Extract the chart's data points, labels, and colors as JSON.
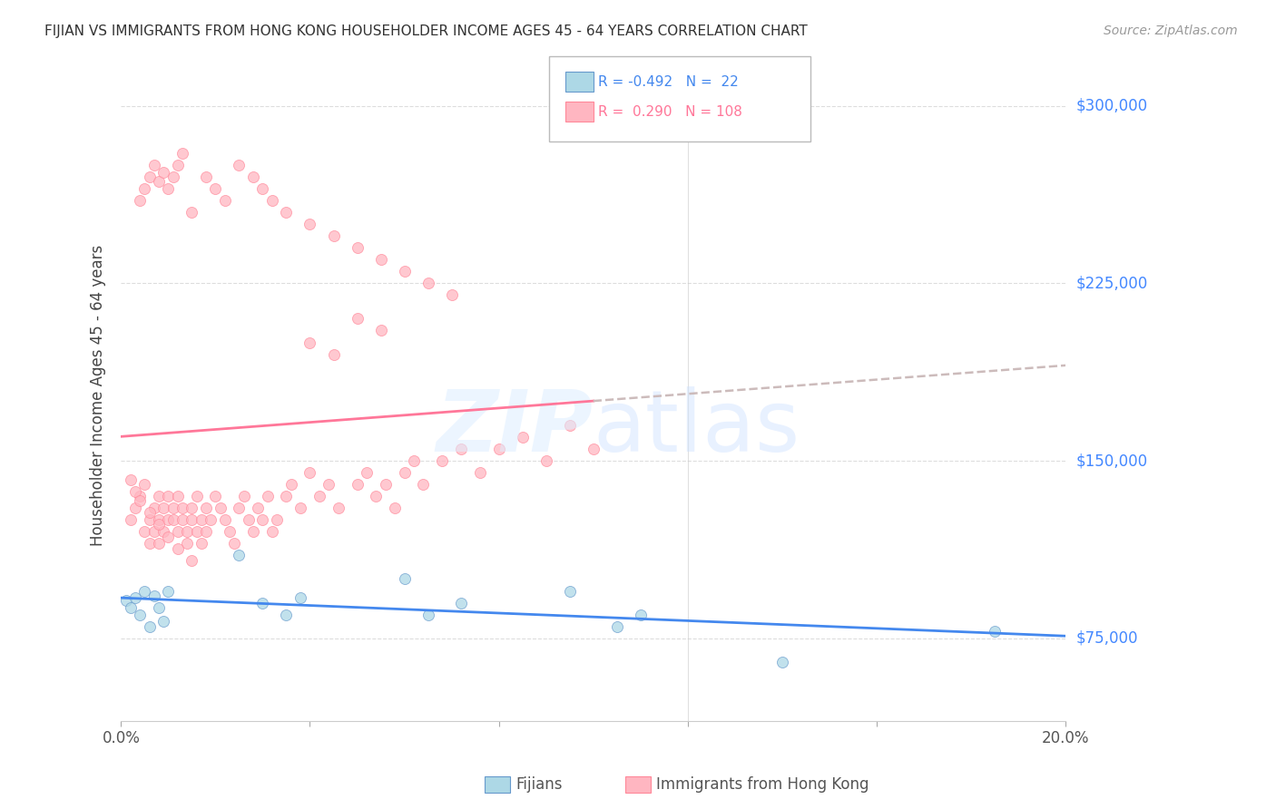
{
  "title": "FIJIAN VS IMMIGRANTS FROM HONG KONG HOUSEHOLDER INCOME AGES 45 - 64 YEARS CORRELATION CHART",
  "source": "Source: ZipAtlas.com",
  "ylabel": "Householder Income Ages 45 - 64 years",
  "xlim": [
    0.0,
    0.2
  ],
  "ylim": [
    40000,
    315000
  ],
  "ytick_labels": [
    "$75,000",
    "$150,000",
    "$225,000",
    "$300,000"
  ],
  "ytick_values": [
    75000,
    150000,
    225000,
    300000
  ],
  "fijian_color": "#ADD8E6",
  "hk_color": "#FFB6C1",
  "fijian_edge_color": "#6699CC",
  "hk_edge_color": "#FF8899",
  "fijian_line_color": "#4488EE",
  "hk_line_color": "#FF7799",
  "hk_dash_color": "#CCBBBB",
  "legend_label_fijian": "Fijians",
  "legend_label_hk": "Immigrants from Hong Kong",
  "fijian_x": [
    0.001,
    0.002,
    0.003,
    0.004,
    0.005,
    0.006,
    0.007,
    0.008,
    0.009,
    0.01,
    0.025,
    0.03,
    0.035,
    0.038,
    0.06,
    0.065,
    0.072,
    0.095,
    0.105,
    0.11,
    0.14,
    0.185
  ],
  "fijian_y": [
    91000,
    88000,
    92000,
    85000,
    95000,
    80000,
    93000,
    88000,
    82000,
    95000,
    110000,
    90000,
    85000,
    92000,
    100000,
    85000,
    90000,
    95000,
    80000,
    85000,
    65000,
    78000
  ],
  "hk_x": [
    0.002,
    0.003,
    0.004,
    0.005,
    0.005,
    0.006,
    0.006,
    0.007,
    0.007,
    0.008,
    0.008,
    0.008,
    0.009,
    0.009,
    0.01,
    0.01,
    0.011,
    0.011,
    0.012,
    0.012,
    0.013,
    0.013,
    0.014,
    0.014,
    0.015,
    0.015,
    0.016,
    0.016,
    0.017,
    0.017,
    0.018,
    0.018,
    0.019,
    0.02,
    0.021,
    0.022,
    0.023,
    0.024,
    0.025,
    0.026,
    0.027,
    0.028,
    0.029,
    0.03,
    0.031,
    0.032,
    0.033,
    0.035,
    0.036,
    0.038,
    0.04,
    0.042,
    0.044,
    0.046,
    0.05,
    0.052,
    0.054,
    0.056,
    0.058,
    0.06,
    0.062,
    0.064,
    0.068,
    0.072,
    0.076,
    0.08,
    0.085,
    0.09,
    0.095,
    0.1,
    0.004,
    0.005,
    0.006,
    0.007,
    0.008,
    0.009,
    0.01,
    0.011,
    0.012,
    0.013,
    0.015,
    0.018,
    0.02,
    0.022,
    0.025,
    0.028,
    0.03,
    0.032,
    0.035,
    0.04,
    0.045,
    0.05,
    0.055,
    0.06,
    0.065,
    0.07,
    0.04,
    0.045,
    0.05,
    0.055,
    0.002,
    0.003,
    0.004,
    0.006,
    0.008,
    0.01,
    0.012,
    0.015
  ],
  "hk_y": [
    125000,
    130000,
    135000,
    120000,
    140000,
    115000,
    125000,
    130000,
    120000,
    135000,
    125000,
    115000,
    130000,
    120000,
    135000,
    125000,
    130000,
    125000,
    120000,
    135000,
    125000,
    130000,
    120000,
    115000,
    125000,
    130000,
    135000,
    120000,
    125000,
    115000,
    130000,
    120000,
    125000,
    135000,
    130000,
    125000,
    120000,
    115000,
    130000,
    135000,
    125000,
    120000,
    130000,
    125000,
    135000,
    120000,
    125000,
    135000,
    140000,
    130000,
    145000,
    135000,
    140000,
    130000,
    140000,
    145000,
    135000,
    140000,
    130000,
    145000,
    150000,
    140000,
    150000,
    155000,
    145000,
    155000,
    160000,
    150000,
    165000,
    155000,
    260000,
    265000,
    270000,
    275000,
    268000,
    272000,
    265000,
    270000,
    275000,
    280000,
    255000,
    270000,
    265000,
    260000,
    275000,
    270000,
    265000,
    260000,
    255000,
    250000,
    245000,
    240000,
    235000,
    230000,
    225000,
    220000,
    200000,
    195000,
    210000,
    205000,
    142000,
    137000,
    133000,
    128000,
    123000,
    118000,
    113000,
    108000
  ]
}
